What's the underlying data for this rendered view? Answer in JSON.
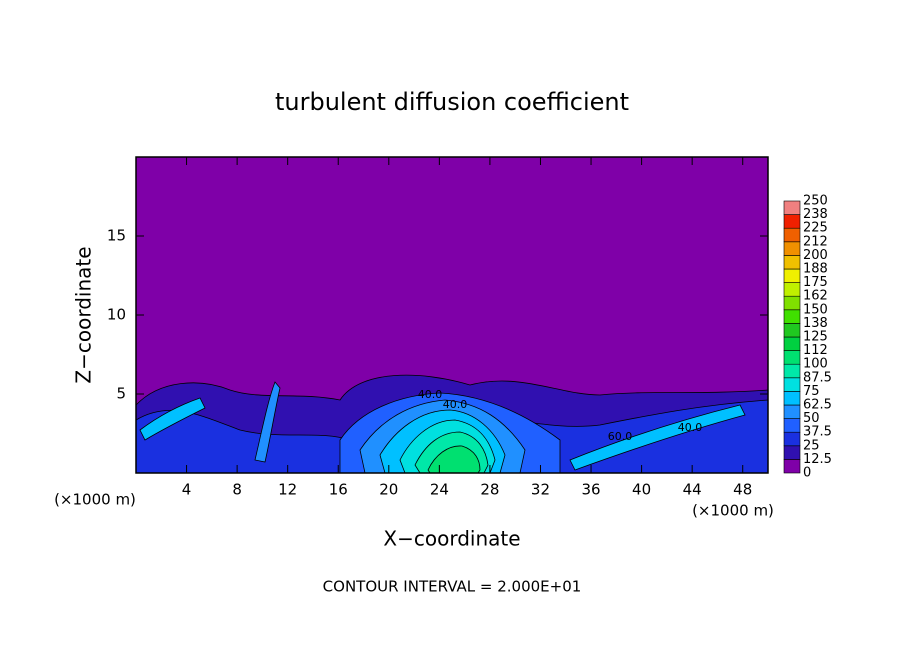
{
  "chart_data": {
    "type": "contour",
    "title": "turbulent diffusion coefficient",
    "xlabel": "X−coordinate",
    "ylabel": "Z−coordinate",
    "x_unit": "(×1000 m)",
    "footnote": "CONTOUR INTERVAL = 2.000E+01",
    "xlim": [
      0,
      50
    ],
    "xticks": [
      4,
      8,
      12,
      16,
      20,
      24,
      28,
      32,
      36,
      40,
      44,
      48
    ],
    "ylim": [
      0,
      20
    ],
    "yticks": [
      5,
      10,
      15
    ],
    "contour_labels": [
      "40.0",
      "40.0",
      "60.0",
      "40.0"
    ],
    "colorbar": {
      "levels": [
        0,
        12.5,
        25,
        37.5,
        50,
        62.5,
        75,
        87.5,
        100,
        {
          "value": 112.5,
          "label": "112"
        },
        125,
        {
          "value": 137.5,
          "label": "138"
        },
        150,
        {
          "value": 162.5,
          "label": "162"
        },
        175,
        {
          "value": 187.5,
          "label": "188"
        },
        200,
        {
          "value": 212.5,
          "label": "212"
        },
        225,
        {
          "value": 237.5,
          "label": "238"
        },
        250
      ],
      "colors": [
        "#7f00a8",
        "#3010b0",
        "#1a30e0",
        "#2060ff",
        "#2090ff",
        "#00c0ff",
        "#00e0e0",
        "#00e8a8",
        "#00e070",
        "#00d040",
        "#20c820",
        "#40e000",
        "#80e000",
        "#c0f000",
        "#f0f000",
        "#f0c000",
        "#f09000",
        "#f06000",
        "#f02000",
        "#f08080"
      ]
    }
  }
}
